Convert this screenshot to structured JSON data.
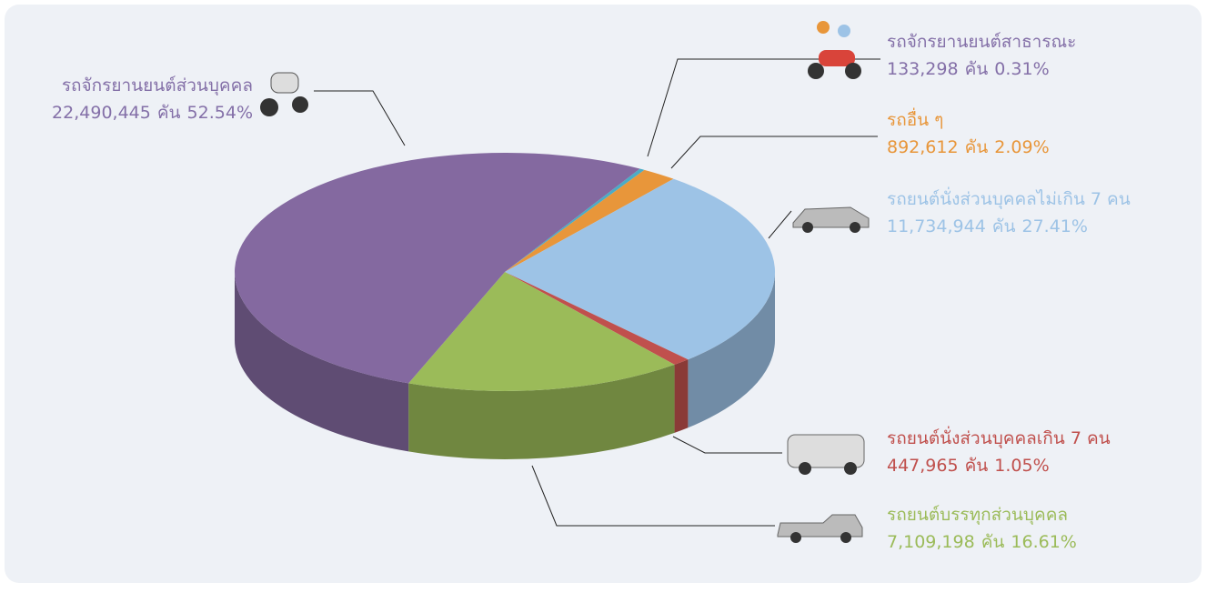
{
  "chart_data": {
    "type": "pie3d",
    "categories": [
      "รถจักรยานยนต์สาธารณะ",
      "รถอื่น ๆ",
      "รถยนต์นั่งส่วนบุคคลไม่เกิน 7 คน",
      "รถยนต์นั่งส่วนบุคคลเกิน 7 คน",
      "รถยนต์บรรทุกส่วนบุคคล",
      "รถจักรยานยนต์ส่วนบุคคล"
    ],
    "values": [
      0.31,
      2.09,
      27.41,
      1.05,
      16.61,
      52.54
    ],
    "value_labels": [
      "0.31%",
      "2.09%",
      "27.41%",
      "1.05%",
      "16.61%",
      "52.54%"
    ],
    "counts": [
      133298,
      892612,
      11734944,
      447965,
      7109198,
      22490445
    ],
    "count_labels": [
      "133,298",
      "892,612",
      "11,734,944",
      "447,965",
      "7,109,198",
      "22,490,445"
    ],
    "unit": "คัน",
    "colors": [
      "#4bacc6",
      "#e8963a",
      "#9dc3e6",
      "#c0504d",
      "#9bbb59",
      "#8469a0"
    ],
    "label_colors": [
      "#8470a8",
      "#e8963a",
      "#9dc3e6",
      "#c0504d",
      "#9bbb59",
      "#8470a8"
    ]
  }
}
